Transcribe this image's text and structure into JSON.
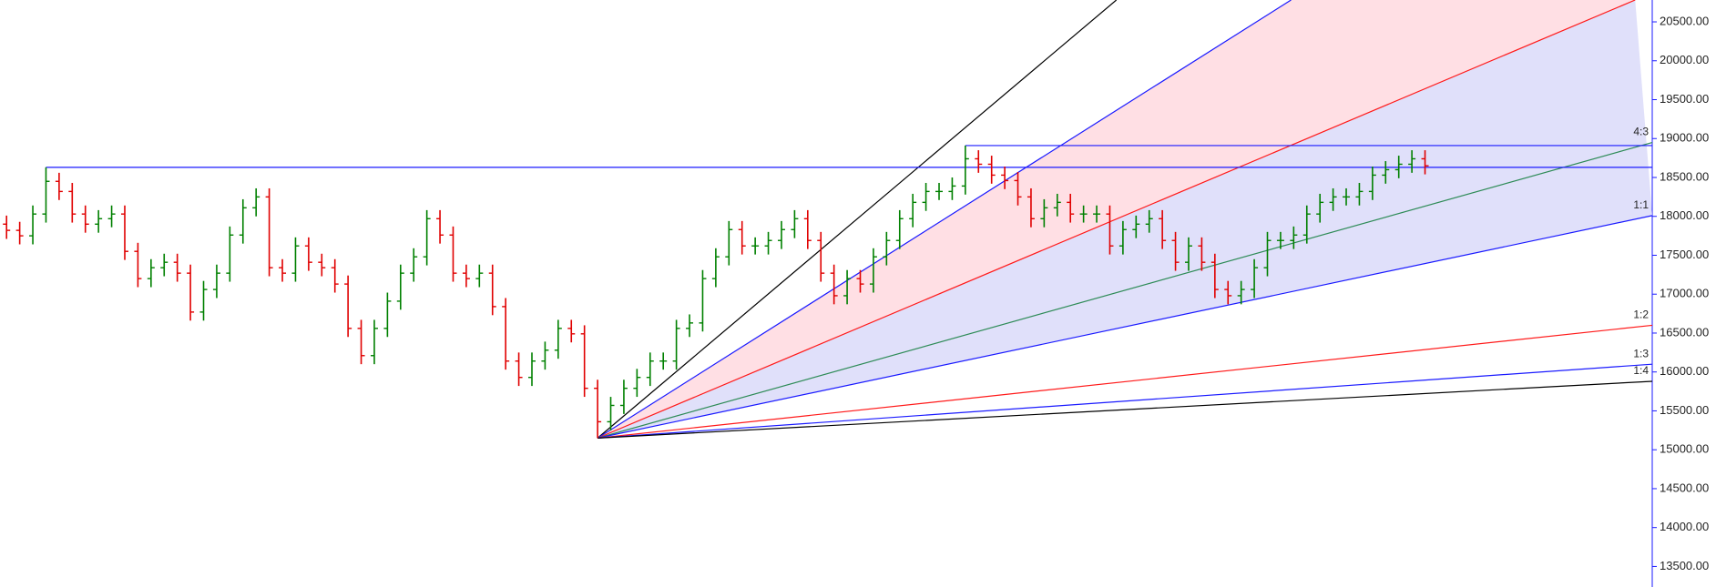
{
  "chart_data": {
    "type": "ohlc",
    "up_color": "#008000",
    "down_color": "#e00000",
    "xlim": [
      -0.5,
      125.3
    ],
    "ylim": [
      13236,
      20781
    ],
    "yticks": [
      {
        "value": 13500,
        "label": "13500.00"
      },
      {
        "value": 14000,
        "label": "14000.00"
      },
      {
        "value": 14500,
        "label": "14500.00"
      },
      {
        "value": 15000,
        "label": "15000.00"
      },
      {
        "value": 15500,
        "label": "15500.00"
      },
      {
        "value": 16000,
        "label": "16000.00"
      },
      {
        "value": 16500,
        "label": "16500.00"
      },
      {
        "value": 17000,
        "label": "17000.00"
      },
      {
        "value": 17500,
        "label": "17500.00"
      },
      {
        "value": 18000,
        "label": "18000.00"
      },
      {
        "value": 18500,
        "label": "18500.00"
      },
      {
        "value": 19000,
        "label": "19000.00"
      },
      {
        "value": 19500,
        "label": "19500.00"
      },
      {
        "value": 20000,
        "label": "20000.00"
      },
      {
        "value": 20500,
        "label": "20500.00"
      }
    ],
    "open": [
      17900,
      17820,
      17750,
      18030,
      18450,
      18320,
      18030,
      17900,
      17970,
      18030,
      17550,
      17200,
      17340,
      17410,
      17270,
      16770,
      17060,
      17270,
      17760,
      18110,
      18250,
      17340,
      17270,
      17620,
      17410,
      17340,
      17130,
      16560,
      16210,
      16560,
      16910,
      17270,
      17480,
      17970,
      17760,
      17270,
      17200,
      17270,
      16840,
      16140,
      15930,
      16140,
      16280,
      16560,
      16490,
      15790,
      15360,
      15570,
      15790,
      15930,
      16140,
      16140,
      16560,
      16630,
      17200,
      17480,
      17830,
      17620,
      17620,
      17690,
      17830,
      17970,
      17690,
      17270,
      16980,
      17200,
      17130,
      17480,
      17690,
      17970,
      18180,
      18320,
      18320,
      18390,
      18740,
      18670,
      18530,
      18460,
      18250,
      17970,
      18110,
      18180,
      18030,
      18030,
      18030,
      17620,
      17830,
      17900,
      17970,
      17690,
      17410,
      17620,
      17410,
      17060,
      16980,
      17060,
      17340,
      17690,
      17690,
      17760,
      18030,
      18180,
      18250,
      18250,
      18320,
      18530,
      18600,
      18670,
      18740
    ],
    "high": [
      18010,
      17930,
      18140,
      18630,
      18560,
      18430,
      18140,
      18080,
      18140,
      18140,
      17660,
      17450,
      17520,
      17520,
      17380,
      17170,
      17380,
      17870,
      18220,
      18360,
      18360,
      17450,
      17730,
      17730,
      17520,
      17450,
      17240,
      16670,
      16670,
      17020,
      17380,
      17590,
      18080,
      18080,
      17870,
      17380,
      17380,
      17380,
      16950,
      16250,
      16250,
      16390,
      16670,
      16670,
      16600,
      15900,
      15680,
      15900,
      16040,
      16250,
      16250,
      16670,
      16740,
      17310,
      17590,
      17940,
      17940,
      17730,
      17800,
      17940,
      18080,
      18080,
      17800,
      17380,
      17310,
      17310,
      17590,
      17800,
      18080,
      18290,
      18430,
      18430,
      18500,
      18910,
      18850,
      18780,
      18640,
      18570,
      18360,
      18220,
      18290,
      18290,
      18140,
      18140,
      18140,
      17940,
      18010,
      18080,
      18080,
      17800,
      17730,
      17730,
      17520,
      17170,
      17170,
      17450,
      17800,
      17800,
      17870,
      18140,
      18290,
      18360,
      18360,
      18430,
      18640,
      18710,
      18780,
      18850,
      18850
    ],
    "low": [
      17710,
      17640,
      17640,
      17920,
      18210,
      17920,
      17790,
      17790,
      17860,
      17440,
      17090,
      17090,
      17230,
      17160,
      16660,
      16660,
      16950,
      17160,
      17650,
      18000,
      17230,
      17160,
      17160,
      17300,
      17230,
      17020,
      16450,
      16100,
      16100,
      16450,
      16800,
      17160,
      17370,
      17650,
      17160,
      17090,
      17090,
      16730,
      16030,
      15820,
      15820,
      16030,
      16170,
      16380,
      15680,
      15150,
      15250,
      15460,
      15680,
      15820,
      16030,
      16030,
      16450,
      16520,
      17090,
      17370,
      17510,
      17510,
      17510,
      17580,
      17720,
      17580,
      17160,
      16870,
      16870,
      17020,
      17020,
      17370,
      17580,
      17860,
      18070,
      18210,
      18210,
      18280,
      18560,
      18420,
      18350,
      18140,
      17860,
      17860,
      18000,
      17920,
      17920,
      17920,
      17510,
      17510,
      17720,
      17790,
      17580,
      17300,
      17300,
      17300,
      16950,
      16870,
      16870,
      16950,
      17230,
      17580,
      17580,
      17650,
      17920,
      18070,
      18140,
      18140,
      18210,
      18420,
      18490,
      18560,
      18540
    ],
    "close": [
      17820,
      17750,
      18030,
      18450,
      18320,
      18030,
      17900,
      17970,
      18030,
      17550,
      17200,
      17340,
      17410,
      17270,
      16770,
      17060,
      17270,
      17760,
      18110,
      18250,
      17340,
      17270,
      17620,
      17410,
      17340,
      17130,
      16560,
      16210,
      16560,
      16910,
      17270,
      17480,
      17970,
      17760,
      17270,
      17200,
      17270,
      16840,
      16140,
      15930,
      16140,
      16280,
      16560,
      16490,
      15790,
      15360,
      15570,
      15790,
      15930,
      16140,
      16140,
      16560,
      16630,
      17200,
      17480,
      17830,
      17620,
      17620,
      17690,
      17830,
      17970,
      17690,
      17270,
      16980,
      17200,
      17130,
      17480,
      17690,
      17970,
      18180,
      18320,
      18320,
      18390,
      18740,
      18670,
      18530,
      18460,
      18250,
      17970,
      18110,
      18180,
      18030,
      18030,
      18030,
      17620,
      17830,
      17900,
      17970,
      17690,
      17410,
      17620,
      17410,
      17060,
      16980,
      17060,
      17340,
      17690,
      17690,
      17760,
      18030,
      18180,
      18250,
      18250,
      18320,
      18530,
      18600,
      18670,
      18740,
      18650
    ],
    "hlines": [
      {
        "from": [
          3,
          18630
        ],
        "color": "#1a1aff"
      },
      {
        "from": [
          73,
          18910
        ],
        "color": "#1a1aff"
      }
    ],
    "gann": {
      "origin": [
        45,
        15150
      ],
      "lines": [
        {
          "end": [
            84.5,
            20781
          ],
          "color": "#000000"
        },
        {
          "end": [
            97.8,
            20781
          ],
          "color": "#1a1aff"
        },
        {
          "end": [
            124,
            20781
          ],
          "color": "#ff1a1a"
        },
        {
          "end": [
            125.3,
            18950
          ],
          "color": "#2e8b57",
          "label": "4:3"
        },
        {
          "end": [
            125.3,
            18010
          ],
          "color": "#1a1aff",
          "label": "1:1"
        },
        {
          "end": [
            125.3,
            16600
          ],
          "color": "#ff1a1a",
          "label": "1:2"
        },
        {
          "end": [
            125.3,
            16100
          ],
          "color": "#1a1aff",
          "label": "1:3"
        },
        {
          "end": [
            125.3,
            15880
          ],
          "color": "#000000",
          "label": "1:4"
        }
      ],
      "fills": [
        {
          "between": [
            1,
            2
          ],
          "color": "#ffdfe4"
        },
        {
          "between": [
            2,
            4
          ],
          "color": "#e0e0fa"
        }
      ]
    }
  }
}
